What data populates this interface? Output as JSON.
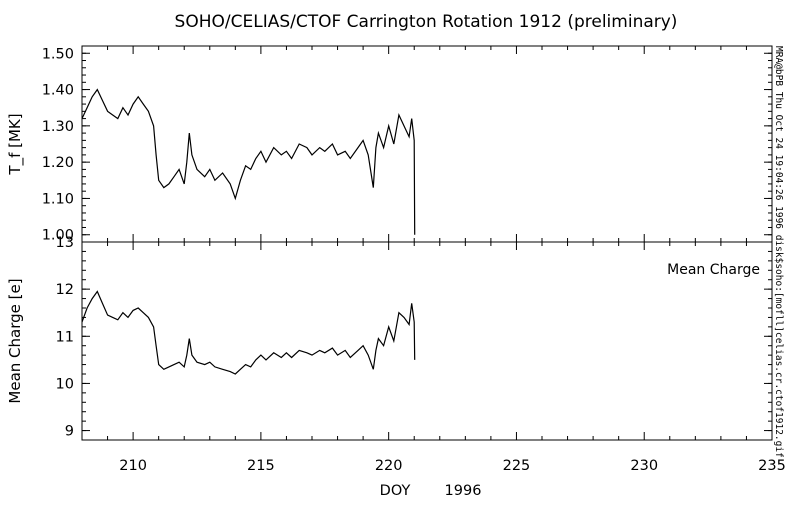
{
  "title": "SOHO/CELIAS/CTOF Carrington Rotation 1912 (preliminary)",
  "xlabel": "DOY",
  "xyear": "1996",
  "side_note": "MRA@bPB Thu Oct 24 19:04:26 1996 disk$soho:[mofll]celias.cr.ctof1912.gif",
  "x_ticks": [
    "210",
    "215",
    "220",
    "225",
    "230",
    "235"
  ],
  "colors": {
    "line": "#000000",
    "axis": "#000000",
    "background": "#ffffff"
  },
  "chart_data": [
    {
      "type": "line",
      "ylabel": "T_f [MK]",
      "xlim": [
        208,
        235
      ],
      "ylim": [
        0.98,
        1.52
      ],
      "y_ticks": [
        "1.00",
        "1.10",
        "1.20",
        "1.30",
        "1.40",
        "1.50"
      ],
      "y_tick_values": [
        1.0,
        1.1,
        1.2,
        1.3,
        1.4,
        1.5
      ],
      "series": [
        {
          "x": [
            208.0,
            208.2,
            208.4,
            208.6,
            208.8,
            209.0,
            209.2,
            209.4,
            209.6,
            209.8,
            210.0,
            210.2,
            210.4,
            210.6,
            210.8,
            210.9,
            211.0,
            211.2,
            211.4,
            211.6,
            211.8,
            212.0,
            212.1,
            212.2,
            212.3,
            212.5,
            212.8,
            213.0,
            213.2,
            213.5,
            213.8,
            214.0,
            214.2,
            214.4,
            214.6,
            214.8,
            215.0,
            215.2,
            215.5,
            215.8,
            216.0,
            216.2,
            216.5,
            216.8,
            217.0,
            217.3,
            217.5,
            217.8,
            218.0,
            218.3,
            218.5,
            218.8,
            219.0,
            219.2,
            219.4,
            219.5,
            219.6,
            219.8,
            220.0,
            220.2,
            220.4,
            220.6,
            220.8,
            220.9,
            221.0,
            221.02
          ],
          "values": [
            1.32,
            1.35,
            1.38,
            1.4,
            1.37,
            1.34,
            1.33,
            1.32,
            1.35,
            1.33,
            1.36,
            1.38,
            1.36,
            1.34,
            1.3,
            1.22,
            1.15,
            1.13,
            1.14,
            1.16,
            1.18,
            1.14,
            1.2,
            1.28,
            1.22,
            1.18,
            1.16,
            1.18,
            1.15,
            1.17,
            1.14,
            1.1,
            1.15,
            1.19,
            1.18,
            1.21,
            1.23,
            1.2,
            1.24,
            1.22,
            1.23,
            1.21,
            1.25,
            1.24,
            1.22,
            1.24,
            1.23,
            1.25,
            1.22,
            1.23,
            1.21,
            1.24,
            1.26,
            1.22,
            1.13,
            1.24,
            1.28,
            1.24,
            1.3,
            1.25,
            1.33,
            1.3,
            1.27,
            1.32,
            1.26,
            1.0
          ]
        }
      ]
    },
    {
      "type": "line",
      "ylabel": "Mean Charge [e]",
      "annotation": "Mean Charge",
      "xlim": [
        208,
        235
      ],
      "ylim": [
        8.8,
        13.0
      ],
      "y_ticks": [
        "9",
        "10",
        "11",
        "12",
        "13"
      ],
      "y_tick_values": [
        9,
        10,
        11,
        12,
        13
      ],
      "series": [
        {
          "x": [
            208.0,
            208.2,
            208.4,
            208.6,
            208.8,
            209.0,
            209.2,
            209.4,
            209.6,
            209.8,
            210.0,
            210.2,
            210.4,
            210.6,
            210.8,
            210.9,
            211.0,
            211.2,
            211.4,
            211.6,
            211.8,
            212.0,
            212.1,
            212.2,
            212.3,
            212.5,
            212.8,
            213.0,
            213.2,
            213.5,
            213.8,
            214.0,
            214.2,
            214.4,
            214.6,
            214.8,
            215.0,
            215.2,
            215.5,
            215.8,
            216.0,
            216.2,
            216.5,
            216.8,
            217.0,
            217.3,
            217.5,
            217.8,
            218.0,
            218.3,
            218.5,
            218.8,
            219.0,
            219.2,
            219.4,
            219.5,
            219.6,
            219.8,
            220.0,
            220.2,
            220.4,
            220.6,
            220.8,
            220.9,
            221.0,
            221.02
          ],
          "values": [
            11.3,
            11.6,
            11.8,
            11.95,
            11.7,
            11.45,
            11.4,
            11.35,
            11.5,
            11.4,
            11.55,
            11.6,
            11.5,
            11.4,
            11.2,
            10.8,
            10.4,
            10.3,
            10.35,
            10.4,
            10.45,
            10.35,
            10.6,
            10.95,
            10.6,
            10.45,
            10.4,
            10.45,
            10.35,
            10.3,
            10.25,
            10.2,
            10.3,
            10.4,
            10.35,
            10.5,
            10.6,
            10.5,
            10.65,
            10.55,
            10.65,
            10.55,
            10.7,
            10.65,
            10.6,
            10.7,
            10.65,
            10.75,
            10.6,
            10.7,
            10.55,
            10.7,
            10.8,
            10.6,
            10.3,
            10.7,
            10.95,
            10.8,
            11.2,
            10.9,
            11.5,
            11.4,
            11.25,
            11.7,
            11.3,
            10.5
          ]
        }
      ]
    }
  ]
}
